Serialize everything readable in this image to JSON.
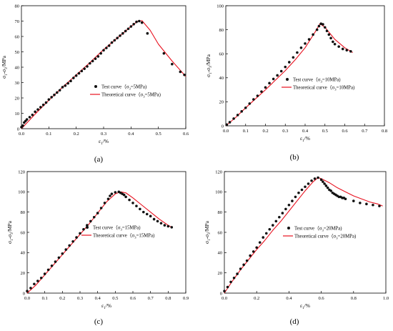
{
  "colors": {
    "theory": "#e8101e",
    "test": "#111111",
    "axis": "#000000"
  },
  "chart_data": [
    {
      "type": "scatter",
      "panel_label": "(a)",
      "xlabel_main": "ε",
      "xlabel_sub": "1",
      "xlabel_tail": "/%",
      "ylabel_main": "σ",
      "ylabel_sub1": "1",
      "ylabel_mid": "-σ",
      "ylabel_sub2": "3",
      "ylabel_tail": "/MPa",
      "xlim": [
        0,
        0.6
      ],
      "ylim": [
        0,
        80
      ],
      "xticks": [
        "0.0",
        "0.1",
        "0.2",
        "0.3",
        "0.4",
        "0.5",
        "0.6"
      ],
      "yticks": [
        "0",
        "10",
        "20",
        "30",
        "40",
        "50",
        "60",
        "70",
        "80"
      ],
      "legend": {
        "position": "center-right",
        "test_pre": "Test curve（σ",
        "test_sub": "3",
        "test_post": "=5MPa)",
        "theory_pre": "Theoretical curve（σ",
        "theory_sub": "3",
        "theory_post": "=5MPa)"
      },
      "series": [
        {
          "kind": "test",
          "x": [
            0.0,
            0.005,
            0.01,
            0.015,
            0.02,
            0.03,
            0.04,
            0.05,
            0.06,
            0.07,
            0.08,
            0.09,
            0.1,
            0.11,
            0.12,
            0.13,
            0.14,
            0.15,
            0.16,
            0.17,
            0.18,
            0.19,
            0.2,
            0.21,
            0.22,
            0.23,
            0.24,
            0.25,
            0.26,
            0.27,
            0.28,
            0.29,
            0.3,
            0.31,
            0.32,
            0.33,
            0.34,
            0.35,
            0.36,
            0.37,
            0.38,
            0.39,
            0.4,
            0.41,
            0.42,
            0.43,
            0.44,
            0.46,
            0.52,
            0.55,
            0.58,
            0.595
          ],
          "y": [
            1,
            2,
            4,
            5,
            6,
            7.5,
            9,
            11,
            12.5,
            14,
            15.5,
            17,
            19,
            20.5,
            22,
            23.5,
            25,
            27,
            28,
            29.5,
            31,
            33,
            34.5,
            36,
            37.5,
            39,
            40.5,
            42.5,
            44,
            45.5,
            47,
            49,
            51,
            52.5,
            54,
            56,
            57.5,
            59,
            60.5,
            62,
            63.5,
            65,
            66.5,
            68,
            69.5,
            70,
            69,
            62,
            49,
            42,
            37,
            35
          ]
        },
        {
          "kind": "theory",
          "x": [
            0,
            0.05,
            0.1,
            0.15,
            0.2,
            0.25,
            0.3,
            0.35,
            0.4,
            0.425,
            0.44,
            0.47,
            0.5,
            0.55,
            0.6
          ],
          "y": [
            0,
            9.5,
            18.5,
            27,
            35,
            43,
            51.5,
            59,
            66.5,
            70,
            70.3,
            64,
            55,
            44,
            34
          ]
        }
      ]
    },
    {
      "type": "scatter",
      "panel_label": "(b)",
      "xlabel_main": "ε",
      "xlabel_sub": "1",
      "xlabel_tail": "/%",
      "ylabel_main": "σ",
      "ylabel_sub1": "1",
      "ylabel_mid": "-σ",
      "ylabel_sub2": "3",
      "ylabel_tail": "/MPa",
      "xlim": [
        0,
        0.8
      ],
      "ylim": [
        0,
        100
      ],
      "xticks": [
        "0.0",
        "0.1",
        "0.2",
        "0.3",
        "0.4",
        "0.5",
        "0.6",
        "0.7",
        "0.8"
      ],
      "yticks": [
        "0",
        "20",
        "40",
        "60",
        "80",
        "100"
      ],
      "legend": {
        "position": "center-right",
        "test_pre": "Test curve（σ",
        "test_sub": "3",
        "test_post": "=10MPa)",
        "theory_pre": "Theoretical curve（σ",
        "theory_sub": "3",
        "theory_post": "=10MPa)"
      },
      "series": [
        {
          "kind": "test",
          "x": [
            0.005,
            0.02,
            0.04,
            0.06,
            0.08,
            0.1,
            0.12,
            0.14,
            0.16,
            0.18,
            0.2,
            0.22,
            0.24,
            0.26,
            0.28,
            0.3,
            0.32,
            0.34,
            0.36,
            0.38,
            0.4,
            0.42,
            0.44,
            0.46,
            0.47,
            0.48,
            0.49,
            0.5,
            0.51,
            0.52,
            0.53,
            0.54,
            0.55,
            0.57,
            0.59,
            0.61,
            0.63
          ],
          "y": [
            1,
            3,
            6,
            9,
            12,
            15,
            18.5,
            22,
            25,
            28.5,
            32,
            35.5,
            39,
            42,
            45.5,
            49,
            53,
            57,
            61,
            65,
            68.5,
            72,
            76,
            80,
            83,
            85,
            84.5,
            82,
            79,
            76,
            73,
            70,
            68,
            66,
            64,
            63,
            62
          ]
        },
        {
          "kind": "theory",
          "x": [
            0,
            0.05,
            0.1,
            0.15,
            0.2,
            0.25,
            0.3,
            0.35,
            0.4,
            0.45,
            0.475,
            0.5,
            0.55,
            0.6,
            0.64
          ],
          "y": [
            0,
            7,
            15,
            22.5,
            30,
            38,
            46,
            55,
            65,
            78,
            85,
            82,
            72,
            65,
            61
          ]
        }
      ]
    },
    {
      "type": "scatter",
      "panel_label": "(c)",
      "xlabel_main": "ε",
      "xlabel_sub": "1",
      "xlabel_tail": "/%",
      "ylabel_main": "σ",
      "ylabel_sub1": "1",
      "ylabel_mid": "-σ",
      "ylabel_sub2": "3",
      "ylabel_tail": "/MPa",
      "xlim": [
        0,
        0.9
      ],
      "ylim": [
        0,
        120
      ],
      "xticks": [
        "0.0",
        "0.1",
        "0.2",
        "0.3",
        "0.4",
        "0.5",
        "0.6",
        "0.7",
        "0.8",
        "0.9"
      ],
      "yticks": [
        "0",
        "20",
        "40",
        "60",
        "80",
        "100",
        "120"
      ],
      "legend": {
        "position": "center-right",
        "test_pre": "Test curve（σ",
        "test_sub": "3",
        "test_post": "=15MPa)",
        "theory_pre": "Theoretical curve（σ",
        "theory_sub": "3",
        "theory_post": "=15MPa)"
      },
      "series": [
        {
          "kind": "test",
          "x": [
            0.0,
            0.02,
            0.04,
            0.06,
            0.08,
            0.1,
            0.12,
            0.14,
            0.16,
            0.18,
            0.2,
            0.22,
            0.24,
            0.26,
            0.28,
            0.3,
            0.32,
            0.34,
            0.36,
            0.38,
            0.4,
            0.42,
            0.44,
            0.46,
            0.47,
            0.48,
            0.5,
            0.52,
            0.53,
            0.54,
            0.55,
            0.56,
            0.58,
            0.6,
            0.62,
            0.64,
            0.66,
            0.68,
            0.7,
            0.72,
            0.74,
            0.76,
            0.78,
            0.8,
            0.82
          ],
          "y": [
            2,
            5,
            9,
            12,
            15,
            19,
            23,
            27,
            31,
            35,
            39,
            43,
            47,
            51,
            55,
            59,
            63,
            67,
            71,
            75,
            79,
            84,
            89,
            93,
            96,
            98,
            99.5,
            100,
            99,
            98,
            97,
            95,
            92,
            89,
            86,
            83,
            80,
            78,
            76,
            73,
            71,
            69,
            67,
            66,
            65
          ]
        },
        {
          "kind": "theory",
          "x": [
            0,
            0.05,
            0.1,
            0.15,
            0.2,
            0.25,
            0.3,
            0.35,
            0.4,
            0.45,
            0.5,
            0.53,
            0.56,
            0.6,
            0.65,
            0.7,
            0.75,
            0.8,
            0.82
          ],
          "y": [
            0,
            8,
            18,
            28,
            38,
            48,
            58,
            68,
            79,
            90,
            98,
            100,
            99,
            94,
            87,
            80,
            73,
            67,
            65
          ]
        }
      ]
    },
    {
      "type": "scatter",
      "panel_label": "(d)",
      "xlabel_main": "ε",
      "xlabel_sub": "1",
      "xlabel_tail": "/%",
      "ylabel_main": "σ",
      "ylabel_sub1": "1",
      "ylabel_mid": "-σ",
      "ylabel_sub2": "3",
      "ylabel_tail": "/MPa",
      "xlim": [
        0,
        1.0
      ],
      "ylim": [
        0,
        120
      ],
      "xticks": [
        "0.0",
        "0.2",
        "0.4",
        "0.6",
        "0.8",
        "1.0"
      ],
      "yticks": [
        "0",
        "20",
        "40",
        "60",
        "80",
        "100",
        "120"
      ],
      "legend": {
        "position": "center-right",
        "test_pre": "Test curve（σ",
        "test_sub": "3",
        "test_post": "=20MPa)",
        "theory_pre": "Theoretical curve（σ",
        "theory_sub": "3",
        "theory_post": "=20MPa)"
      },
      "series": [
        {
          "kind": "test",
          "x": [
            0.0,
            0.02,
            0.04,
            0.06,
            0.08,
            0.1,
            0.12,
            0.14,
            0.16,
            0.18,
            0.2,
            0.22,
            0.24,
            0.26,
            0.28,
            0.3,
            0.32,
            0.34,
            0.36,
            0.38,
            0.4,
            0.42,
            0.44,
            0.46,
            0.48,
            0.5,
            0.52,
            0.54,
            0.56,
            0.58,
            0.6,
            0.61,
            0.62,
            0.63,
            0.64,
            0.65,
            0.66,
            0.67,
            0.68,
            0.69,
            0.7,
            0.71,
            0.72,
            0.73,
            0.74,
            0.75,
            0.8,
            0.84,
            0.88,
            0.92,
            0.96
          ],
          "y": [
            2,
            6,
            11,
            15,
            19,
            24,
            28,
            32,
            37,
            41,
            45,
            50,
            55,
            59,
            63,
            67,
            71,
            75,
            79,
            83,
            87,
            91,
            95,
            99,
            102,
            105,
            108,
            111,
            113,
            114,
            112,
            110,
            108,
            106,
            104,
            102,
            101,
            99,
            98,
            97,
            96,
            95,
            95,
            94,
            94,
            93,
            91,
            89,
            88,
            87,
            86
          ]
        },
        {
          "kind": "theory",
          "x": [
            0,
            0.05,
            0.1,
            0.15,
            0.2,
            0.25,
            0.3,
            0.35,
            0.4,
            0.45,
            0.5,
            0.55,
            0.58,
            0.6,
            0.65,
            0.7,
            0.75,
            0.8,
            0.85,
            0.9,
            0.95,
            0.98
          ],
          "y": [
            0,
            12,
            23,
            33,
            43,
            52,
            62,
            71,
            81,
            91,
            101,
            110,
            114,
            113,
            109,
            104,
            100,
            96,
            93,
            90,
            88,
            86
          ]
        }
      ]
    }
  ]
}
